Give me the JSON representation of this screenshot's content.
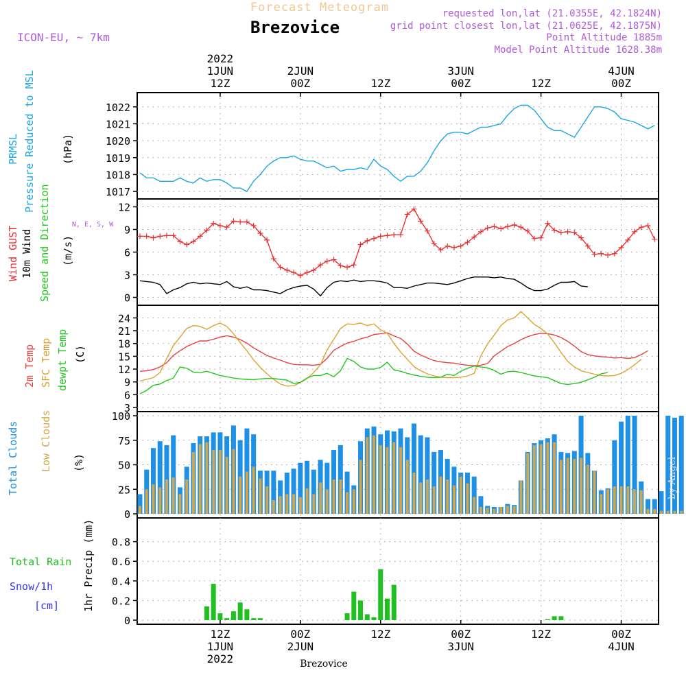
{
  "header": {
    "model": "ICON-EU, ~ 7km",
    "title": "Forecast Meteogram",
    "location": "Brezovice",
    "requested": "requested lon,lat (21.0355E, 42.1824N)",
    "gridpoint": "grid point closest lon,lat (21.0625E, 42.1875N)",
    "point_alt": "Point Altitude 1885m",
    "model_alt": "Model Point Altitude 1628.38m",
    "footer": "Brezovice",
    "credit": "by Angel"
  },
  "time_axis": {
    "top": [
      {
        "lines": [
          "2022",
          "1JUN",
          "12Z"
        ],
        "hour": 12
      },
      {
        "lines": [
          "2JUN",
          "00Z"
        ],
        "hour": 24
      },
      {
        "lines": [
          "12Z"
        ],
        "hour": 36
      },
      {
        "lines": [
          "3JUN",
          "00Z"
        ],
        "hour": 48
      },
      {
        "lines": [
          "12Z"
        ],
        "hour": 60
      },
      {
        "lines": [
          "4JUN",
          "00Z"
        ],
        "hour": 72
      }
    ],
    "bottom": [
      {
        "lines": [
          "12Z",
          "1JUN",
          "2022"
        ],
        "hour": 12
      },
      {
        "lines": [
          "00Z",
          "2JUN"
        ],
        "hour": 24
      },
      {
        "lines": [
          "12Z"
        ],
        "hour": 36
      },
      {
        "lines": [
          "00Z",
          "3JUN"
        ],
        "hour": 48
      },
      {
        "lines": [
          "12Z"
        ],
        "hour": 60
      },
      {
        "lines": [
          "00Z",
          "4JUN"
        ],
        "hour": 72
      }
    ]
  },
  "colors": {
    "pressure": "#1aa5e6",
    "gust": "#e83030",
    "wind": "#000000",
    "t2m": "#e84040",
    "tsfc": "#e0a030",
    "dewpt": "#22c81e",
    "total_clouds": "#1e90e6",
    "low_clouds": "#d2a64a",
    "rain": "#20c020",
    "snow": "#3333ee",
    "purple": "#b05ad8"
  },
  "chart_data": [
    {
      "type": "line",
      "id": "pressure",
      "ylabel": [
        "PRMSL",
        "Pressure Reduced to MSL",
        "(hPa)"
      ],
      "ylim": [
        1016.8,
        1022.6
      ],
      "yticks": [
        1017,
        1018,
        1019,
        1020,
        1021,
        1022
      ],
      "x_start_hour": 0,
      "x_step_hours": 1,
      "series": [
        {
          "name": "PRMSL",
          "color": "#1aa5e6",
          "values": [
            1018.1,
            1017.8,
            1017.8,
            1017.6,
            1017.6,
            1017.6,
            1017.8,
            1017.6,
            1017.5,
            1017.8,
            1017.6,
            1017.7,
            1017.7,
            1017.5,
            1017.2,
            1017.2,
            1017.0,
            1017.6,
            1018.0,
            1018.5,
            1018.8,
            1019.0,
            1019.0,
            1019.1,
            1018.9,
            1018.8,
            1018.8,
            1018.6,
            1018.4,
            1018.5,
            1018.2,
            1018.3,
            1018.3,
            1018.4,
            1018.3,
            1018.9,
            1018.5,
            1018.3,
            1017.9,
            1017.6,
            1017.9,
            1017.9,
            1018.2,
            1018.7,
            1019.4,
            1020.0,
            1020.4,
            1020.5,
            1020.5,
            1020.4,
            1020.6,
            1020.8,
            1020.8,
            1020.9,
            1021.0,
            1021.5,
            1021.9,
            1022.1,
            1022.1,
            1021.8,
            1021.3,
            1020.8,
            1020.6,
            1020.6,
            1020.4,
            1020.2,
            1020.8,
            1021.4,
            1022.0,
            1022.0,
            1021.9,
            1021.7,
            1021.3,
            1021.2,
            1021.1,
            1020.9,
            1020.7,
            1020.9
          ]
        }
      ]
    },
    {
      "type": "line",
      "id": "wind",
      "ylabel": [
        "Wind GUST",
        "10m Wind",
        "Speed and Direction",
        "(m/s)"
      ],
      "compass": "N, E, S, W",
      "ylim": [
        -0.5,
        12.5
      ],
      "yticks": [
        0,
        3,
        6,
        9,
        12
      ],
      "x_start_hour": 0,
      "x_step_hours": 1,
      "series": [
        {
          "name": "Wind GUST",
          "color": "#e83030",
          "marker": "+",
          "values": [
            8.1,
            8.1,
            7.9,
            8.1,
            8.2,
            8.2,
            7.4,
            7.0,
            7.4,
            8.1,
            8.9,
            9.8,
            9.5,
            9.3,
            10.1,
            10.0,
            10.0,
            9.5,
            8.5,
            7.6,
            5.1,
            4.0,
            3.6,
            3.3,
            2.9,
            3.3,
            3.6,
            4.3,
            4.8,
            5.0,
            4.2,
            4.0,
            4.3,
            7.0,
            7.5,
            7.8,
            8.1,
            8.2,
            8.3,
            8.3,
            11.0,
            11.7,
            10.1,
            8.8,
            7.1,
            6.3,
            6.8,
            6.6,
            6.8,
            7.3,
            8.0,
            8.7,
            9.2,
            9.4,
            9.1,
            9.4,
            9.6,
            9.3,
            8.8,
            7.8,
            7.9,
            9.8,
            8.9,
            8.6,
            8.7,
            8.6,
            7.9,
            6.8,
            5.7,
            5.8,
            5.6,
            5.8,
            6.6,
            7.6,
            8.7,
            9.3,
            9.5,
            7.7
          ]
        },
        {
          "name": "10m Wind",
          "color": "#000000",
          "values": [
            2.2,
            2.1,
            2.0,
            1.7,
            0.5,
            1.0,
            1.3,
            1.8,
            2.0,
            1.8,
            1.9,
            1.8,
            1.7,
            2.1,
            1.4,
            1.2,
            1.4,
            1.0,
            1.0,
            0.9,
            0.7,
            0.5,
            1.0,
            1.3,
            1.5,
            1.6,
            1.1,
            0.2,
            1.3,
            2.0,
            2.2,
            2.1,
            2.3,
            2.1,
            2.2,
            2.2,
            2.1,
            1.9,
            1.3,
            1.3,
            1.2,
            1.5,
            1.7,
            1.9,
            1.9,
            1.8,
            1.7,
            1.9,
            2.2,
            2.5,
            2.7,
            2.7,
            2.7,
            2.6,
            2.7,
            2.5,
            2.4,
            1.9,
            1.3,
            0.9,
            0.9,
            1.1,
            1.6,
            2.0,
            2.0,
            2.1,
            1.5,
            1.4
          ]
        }
      ]
    },
    {
      "type": "line",
      "id": "temperature",
      "ylabel": [
        "2m Temp",
        "SFC Temp",
        "dewpt Temp",
        "(C)"
      ],
      "ylim": [
        3,
        26
      ],
      "yticks": [
        3,
        6,
        9,
        12,
        15,
        18,
        21,
        24
      ],
      "x_start_hour": 0,
      "x_step_hours": 1,
      "series": [
        {
          "name": "2m Temp",
          "color": "#e84040",
          "values": [
            11.5,
            11.6,
            11.9,
            12.5,
            13.5,
            15.2,
            16.3,
            17.3,
            18.0,
            18.6,
            18.6,
            19.0,
            19.5,
            19.8,
            19.5,
            18.9,
            18.1,
            17.0,
            16.1,
            15.2,
            14.6,
            14.1,
            13.5,
            13.1,
            13.0,
            13.0,
            12.9,
            13.1,
            14.5,
            16.4,
            17.3,
            18.1,
            18.5,
            19.1,
            19.5,
            20.1,
            20.3,
            20.5,
            19.8,
            19.2,
            17.9,
            16.2,
            15.3,
            14.6,
            14.0,
            13.7,
            13.5,
            13.4,
            13.1,
            12.9,
            12.8,
            12.9,
            13.3,
            15.1,
            16.2,
            17.3,
            18.0,
            18.9,
            19.6,
            20.1,
            20.4,
            20.3,
            20.0,
            19.4,
            18.5,
            17.4,
            16.1,
            15.4,
            15.1,
            14.9,
            14.8,
            14.6,
            14.7,
            14.5,
            14.7,
            15.4,
            16.3
          ]
        },
        {
          "name": "SFC Temp",
          "color": "#e0a030",
          "values": [
            9.2,
            9.6,
            10.0,
            11.2,
            14.5,
            17.5,
            19.5,
            21.5,
            22.2,
            22.0,
            21.3,
            22.2,
            22.8,
            22.0,
            20.3,
            18.2,
            16.3,
            14.2,
            12.4,
            10.9,
            9.6,
            8.5,
            8.0,
            8.1,
            8.8,
            9.8,
            11.2,
            13.0,
            16.5,
            19.0,
            21.5,
            22.6,
            22.5,
            22.8,
            22.2,
            22.6,
            21.2,
            20.4,
            18.0,
            16.0,
            14.3,
            12.6,
            11.6,
            10.9,
            10.4,
            10.1,
            10.0,
            10.0,
            10.1,
            10.4,
            11.0,
            15.1,
            17.9,
            20.0,
            22.2,
            23.5,
            24.0,
            25.5,
            24.0,
            22.5,
            21.5,
            20.2,
            18.2,
            15.9,
            13.8,
            12.5,
            11.6,
            11.2,
            10.8,
            10.5,
            10.4,
            10.5,
            11.0,
            11.9,
            13.0,
            14.3
          ]
        },
        {
          "name": "dewpt Temp",
          "color": "#22c81e",
          "values": [
            6.2,
            7.0,
            8.2,
            8.5,
            9.3,
            9.9,
            12.5,
            12.2,
            11.3,
            11.1,
            11.5,
            11.0,
            10.5,
            10.2,
            9.9,
            9.7,
            9.6,
            9.5,
            9.7,
            9.8,
            9.8,
            9.6,
            9.4,
            8.6,
            8.9,
            9.9,
            10.5,
            10.5,
            11.0,
            10.2,
            11.6,
            14.5,
            13.8,
            12.5,
            12.0,
            12.0,
            12.4,
            13.6,
            11.8,
            11.5,
            11.0,
            10.6,
            10.3,
            10.1,
            10.0,
            10.1,
            10.8,
            10.5,
            11.5,
            12.2,
            12.7,
            12.5,
            12.3,
            11.7,
            10.8,
            11.4,
            11.5,
            11.2,
            10.8,
            10.4,
            10.2,
            10.0,
            9.3,
            8.6,
            8.4,
            8.6,
            8.9,
            9.5,
            10.1,
            10.9,
            11.2
          ]
        }
      ]
    },
    {
      "type": "bar",
      "id": "clouds",
      "ylabel": [
        "Total Clouds",
        "Low Clouds",
        "(%)"
      ],
      "ylim": [
        0,
        100
      ],
      "yticks": [
        0,
        25,
        50,
        75,
        100
      ],
      "x_start_hour": 0,
      "x_step_hours": 1,
      "series": [
        {
          "name": "Total Clouds",
          "color": "#1e90e6",
          "values": [
            20,
            45,
            67,
            74,
            70,
            80,
            27,
            48,
            72,
            79,
            79,
            83,
            83,
            79,
            90,
            75,
            87,
            81,
            44,
            44,
            44,
            34,
            42,
            46,
            52,
            54,
            45,
            55,
            52,
            65,
            70,
            43,
            29,
            74,
            87,
            89,
            81,
            85,
            84,
            87,
            78,
            92,
            80,
            78,
            63,
            65,
            56,
            48,
            42,
            42,
            38,
            18,
            8,
            7,
            7,
            10,
            9,
            34,
            63,
            72,
            75,
            77,
            81,
            63,
            62,
            64,
            100,
            62,
            44,
            24,
            26,
            75,
            94,
            100,
            100,
            33,
            15,
            15,
            23,
            100,
            98,
            100
          ]
        },
        {
          "name": "Low Clouds",
          "color": "#d2a64a",
          "values": [
            8,
            25,
            30,
            27,
            35,
            37,
            20,
            35,
            63,
            71,
            73,
            65,
            65,
            58,
            66,
            38,
            43,
            48,
            36,
            28,
            14,
            18,
            20,
            20,
            17,
            26,
            20,
            32,
            25,
            35,
            35,
            22,
            25,
            55,
            78,
            80,
            70,
            68,
            73,
            68,
            55,
            42,
            32,
            35,
            28,
            38,
            35,
            29,
            38,
            31,
            17,
            7,
            6,
            5,
            7,
            8,
            8,
            34,
            62,
            70,
            71,
            73,
            73,
            55,
            57,
            56,
            57,
            50,
            44,
            20,
            25,
            28,
            28,
            28,
            25,
            24,
            5,
            5,
            3,
            3,
            3,
            3
          ]
        }
      ]
    },
    {
      "type": "bar",
      "id": "precip",
      "ylabel": [
        "1hr Precip (mm)"
      ],
      "legend": [
        "Total Rain",
        "Snow/1h",
        "[cm]"
      ],
      "ylim": [
        0,
        1.0
      ],
      "yticks": [
        0,
        0.2,
        0.4,
        0.6,
        0.8
      ],
      "x_start_hour": 0,
      "x_step_hours": 1,
      "series": [
        {
          "name": "Total Rain",
          "color": "#20c020",
          "values": [
            0,
            0,
            0,
            0,
            0,
            0,
            0,
            0,
            0,
            0,
            0.14,
            0.37,
            0.07,
            0.02,
            0.09,
            0.18,
            0.11,
            0.02,
            0.02,
            0,
            0,
            0,
            0,
            0,
            0,
            0,
            0,
            0,
            0,
            0,
            0,
            0.07,
            0.29,
            0.2,
            0.06,
            0.03,
            0.52,
            0.22,
            0.36,
            0,
            0,
            0,
            0,
            0,
            0,
            0,
            0,
            0,
            0,
            0,
            0,
            0,
            0,
            0,
            0,
            0,
            0,
            0,
            0,
            0,
            0,
            0.01,
            0.04,
            0.04,
            0,
            0,
            0,
            0,
            0,
            0,
            0,
            0,
            0,
            0,
            0,
            0,
            0,
            0
          ]
        }
      ]
    }
  ]
}
